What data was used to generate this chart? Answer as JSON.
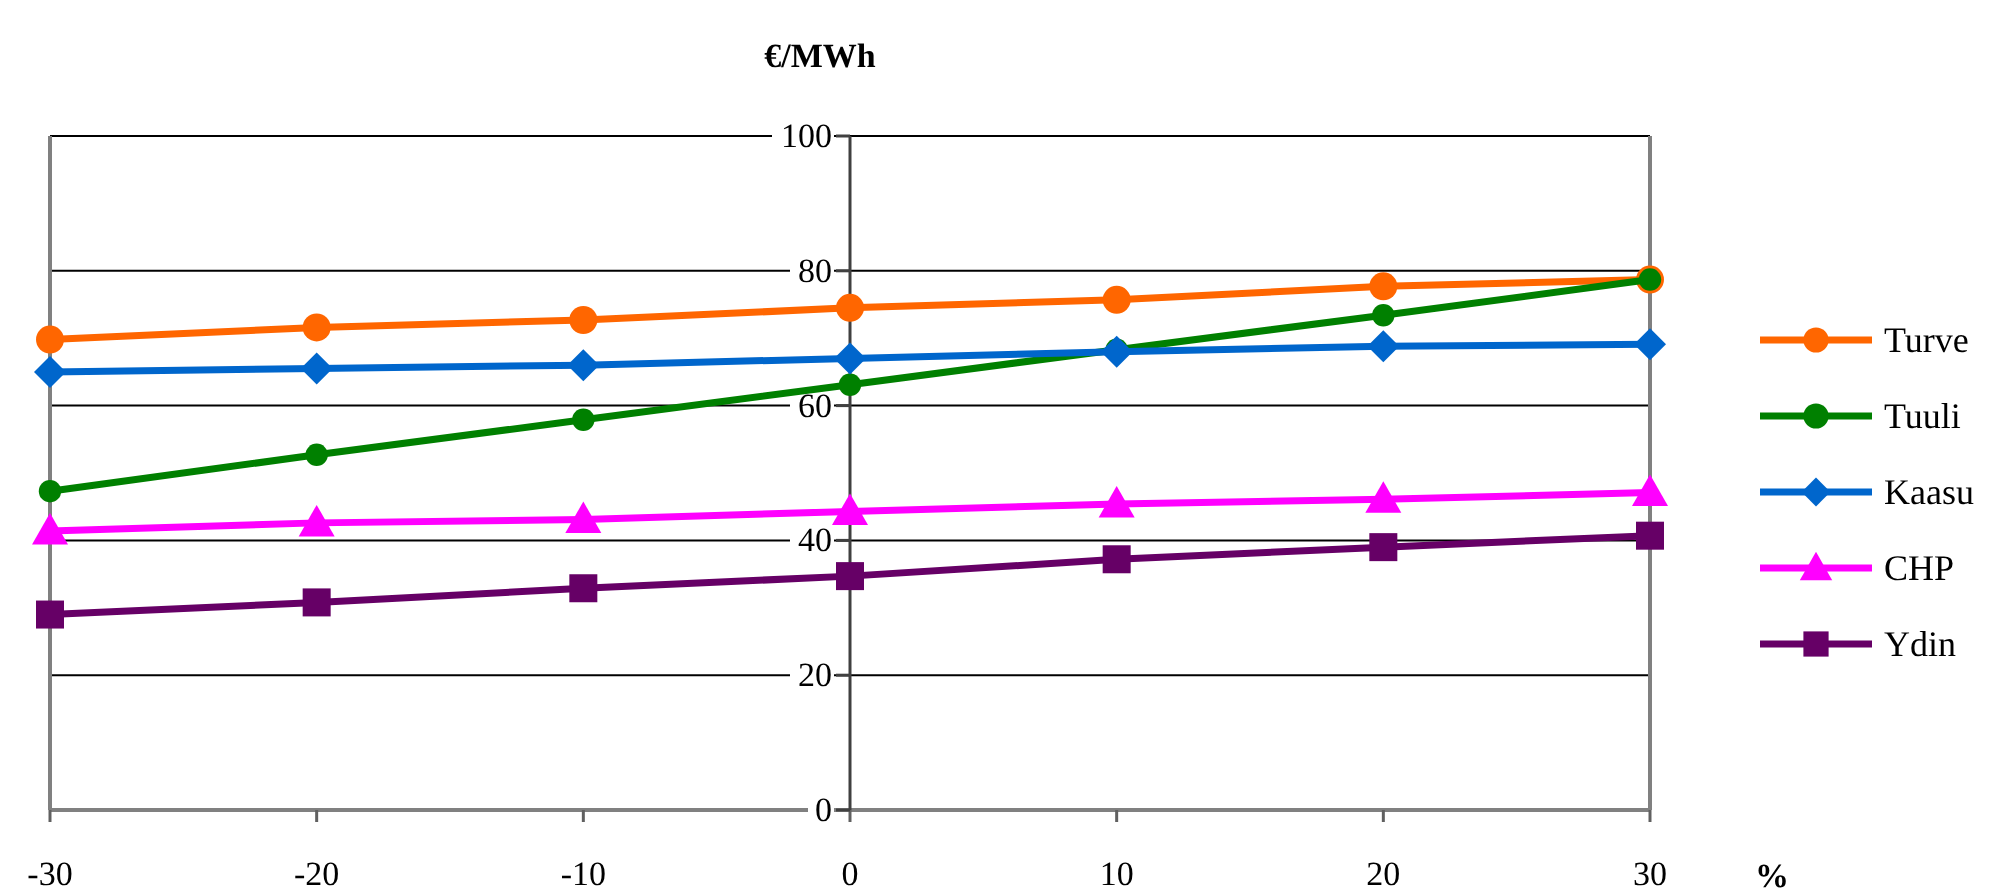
{
  "chart_data": {
    "type": "line",
    "xlabel": "%",
    "ylabel": "€/MWh",
    "x": [
      -30,
      -20,
      -10,
      0,
      10,
      20,
      30
    ],
    "xlim": [
      -30,
      30
    ],
    "xticks": [
      -30,
      -20,
      -10,
      0,
      10,
      20,
      30
    ],
    "ylim": [
      0,
      100
    ],
    "yticks": [
      0,
      20,
      40,
      60,
      80,
      100
    ],
    "grid": "y",
    "legend": "right",
    "series": [
      {
        "name": "Turve",
        "color": "#ff6600",
        "marker": "circle",
        "values": [
          69.8,
          71.6,
          72.7,
          74.5,
          75.7,
          77.7,
          78.7
        ]
      },
      {
        "name": "Tuuli",
        "color": "#008000",
        "marker": "circle",
        "values": [
          47.3,
          52.7,
          57.9,
          63.1,
          68.3,
          73.4,
          78.7
        ]
      },
      {
        "name": "Kaasu",
        "color": "#0066cc",
        "marker": "diamond",
        "values": [
          65.0,
          65.5,
          66.0,
          67.0,
          68.0,
          68.8,
          69.1
        ]
      },
      {
        "name": "CHP",
        "color": "#ff00ff",
        "marker": "triangle",
        "values": [
          41.4,
          42.6,
          43.1,
          44.3,
          45.4,
          46.1,
          47.1
        ]
      },
      {
        "name": "Ydin",
        "color": "#660066",
        "marker": "square",
        "values": [
          29.0,
          30.8,
          32.9,
          34.7,
          37.2,
          39.0,
          40.7
        ]
      }
    ]
  }
}
